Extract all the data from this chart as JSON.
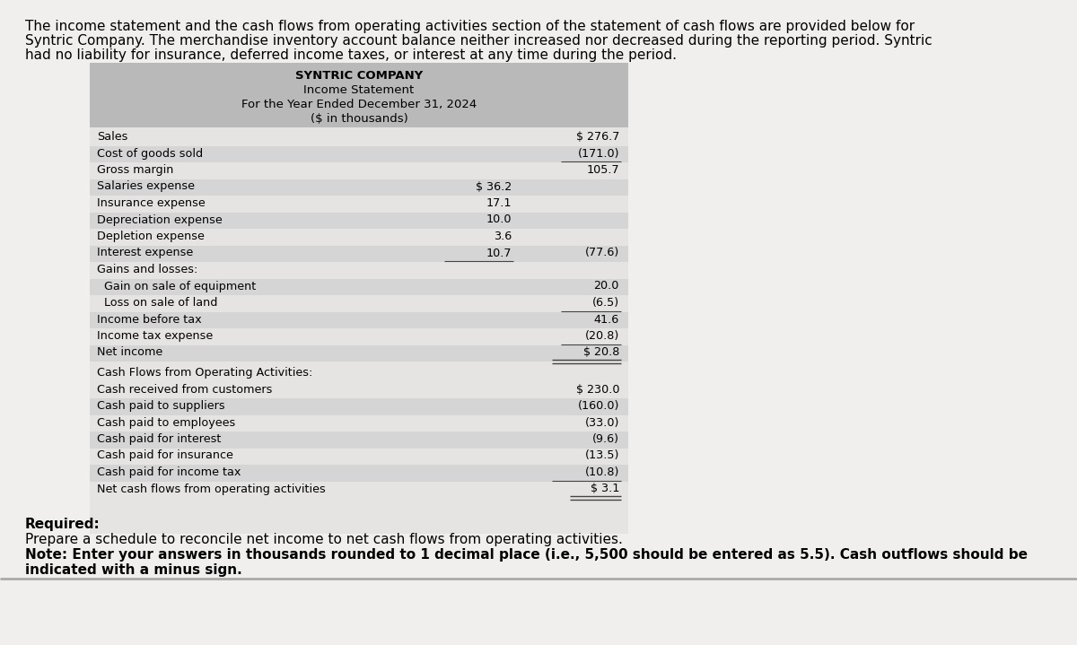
{
  "intro_text_line1": "The income statement and the cash flows from operating activities section of the statement of cash flows are provided below for",
  "intro_text_line2": "Syntric Company. The merchandise inventory account balance neither increased nor decreased during the reporting period. Syntric",
  "intro_text_line3": "had no liability for insurance, deferred income taxes, or interest at any time during the period.",
  "table_header_lines": [
    "SYNTRIC COMPANY",
    "Income Statement",
    "For the Year Ended December 31, 2024",
    "($ in thousands)"
  ],
  "income_rows": [
    {
      "label": "Sales",
      "col1": "",
      "col2": "$ 276.7",
      "indent": 0,
      "ul_col1": false,
      "ul_col2": false,
      "dbl_col2": false
    },
    {
      "label": "Cost of goods sold",
      "col1": "",
      "col2": "(171.0)",
      "indent": 0,
      "ul_col1": false,
      "ul_col2": true,
      "dbl_col2": false
    },
    {
      "label": "Gross margin",
      "col1": "",
      "col2": "105.7",
      "indent": 0,
      "ul_col1": false,
      "ul_col2": false,
      "dbl_col2": false
    },
    {
      "label": "Salaries expense",
      "col1": "$ 36.2",
      "col2": "",
      "indent": 0,
      "ul_col1": false,
      "ul_col2": false,
      "dbl_col2": false
    },
    {
      "label": "Insurance expense",
      "col1": "17.1",
      "col2": "",
      "indent": 0,
      "ul_col1": false,
      "ul_col2": false,
      "dbl_col2": false
    },
    {
      "label": "Depreciation expense",
      "col1": "10.0",
      "col2": "",
      "indent": 0,
      "ul_col1": false,
      "ul_col2": false,
      "dbl_col2": false
    },
    {
      "label": "Depletion expense",
      "col1": "3.6",
      "col2": "",
      "indent": 0,
      "ul_col1": false,
      "ul_col2": false,
      "dbl_col2": false
    },
    {
      "label": "Interest expense",
      "col1": "10.7",
      "col2": "(77.6)",
      "indent": 0,
      "ul_col1": true,
      "ul_col2": false,
      "dbl_col2": false
    },
    {
      "label": "Gains and losses:",
      "col1": "",
      "col2": "",
      "indent": 0,
      "ul_col1": false,
      "ul_col2": false,
      "dbl_col2": false
    },
    {
      "label": "  Gain on sale of equipment",
      "col1": "",
      "col2": "20.0",
      "indent": 0,
      "ul_col1": false,
      "ul_col2": false,
      "dbl_col2": false
    },
    {
      "label": "  Loss on sale of land",
      "col1": "",
      "col2": "(6.5)",
      "indent": 0,
      "ul_col1": false,
      "ul_col2": true,
      "dbl_col2": false
    },
    {
      "label": "Income before tax",
      "col1": "",
      "col2": "41.6",
      "indent": 0,
      "ul_col1": false,
      "ul_col2": false,
      "dbl_col2": false
    },
    {
      "label": "Income tax expense",
      "col1": "",
      "col2": "(20.8)",
      "indent": 0,
      "ul_col1": false,
      "ul_col2": true,
      "dbl_col2": false
    },
    {
      "label": "Net income",
      "col1": "",
      "col2": "$ 20.8",
      "indent": 0,
      "ul_col1": false,
      "ul_col2": false,
      "dbl_col2": true
    }
  ],
  "cash_header": "Cash Flows from Operating Activities:",
  "cash_rows": [
    {
      "label": "Cash received from customers",
      "col2": "$ 230.0",
      "ul": false
    },
    {
      "label": "Cash paid to suppliers",
      "col2": "(160.0)",
      "ul": false
    },
    {
      "label": "Cash paid to employees",
      "col2": "(33.0)",
      "ul": false
    },
    {
      "label": "Cash paid for interest",
      "col2": "(9.6)",
      "ul": false
    },
    {
      "label": "Cash paid for insurance",
      "col2": "(13.5)",
      "ul": false
    },
    {
      "label": "Cash paid for income tax",
      "col2": "(10.8)",
      "ul": true
    }
  ],
  "net_cash_label": "Net cash flows from operating activities",
  "net_cash_value": "$ 3.1",
  "required_header": "Required:",
  "required_line1": "Prepare a schedule to reconcile net income to net cash flows from operating activities.",
  "note_line1": "Note: Enter your answers in thousands rounded to 1 decimal place (i.e., 5,500 should be entered as 5.5). Cash outflows should be",
  "note_line2": "indicated with a minus sign.",
  "page_bg": "#f0efed",
  "table_header_bg": "#b0b0b0",
  "row_stripe_color": "#c8c8c8",
  "font_intro": 11.0,
  "font_header": 9.5,
  "font_body": 9.2,
  "font_required": 11.0
}
